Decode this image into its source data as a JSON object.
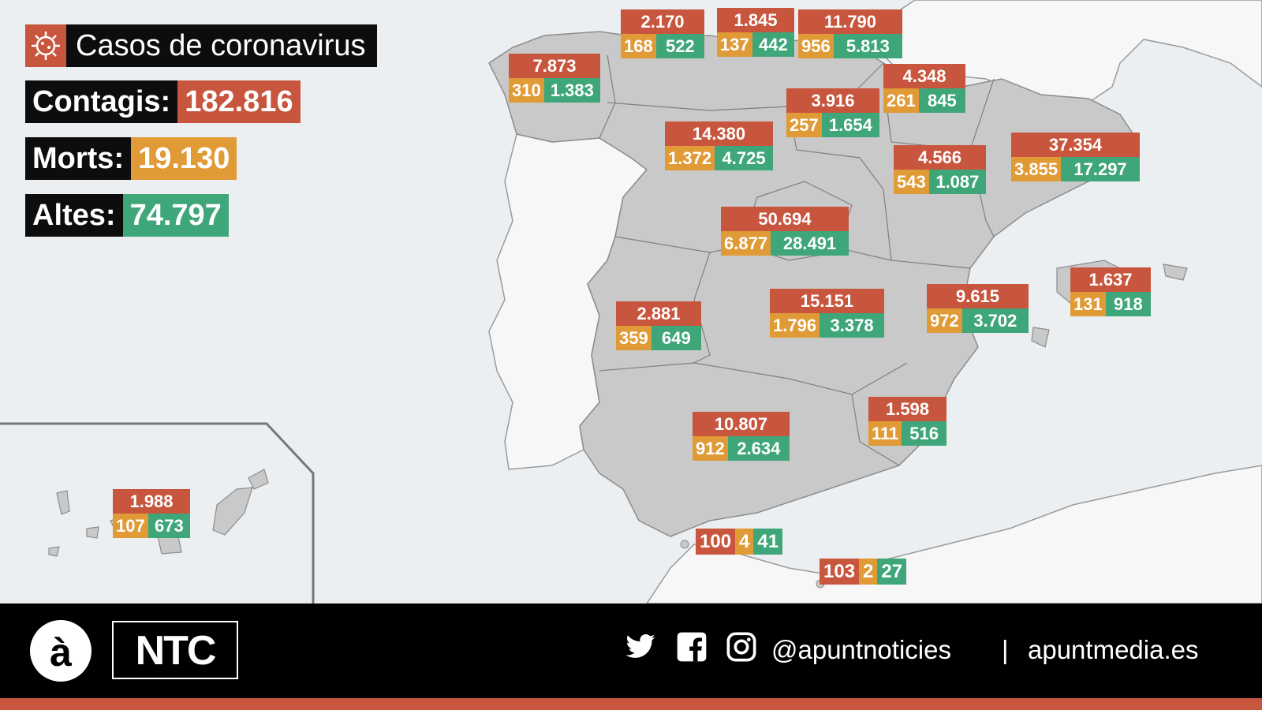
{
  "header": {
    "title": "Casos de coronavirus",
    "icon": "virus-icon"
  },
  "totals": [
    {
      "label": "Contagis:",
      "value": "182.816",
      "color": "#c8553d"
    },
    {
      "label": "Morts:",
      "value": "19.130",
      "color": "#e09a36"
    },
    {
      "label": "Altes:",
      "value": "74.797",
      "color": "#3fa67a"
    }
  ],
  "colors": {
    "cases": "#c8553d",
    "deaths": "#e09a36",
    "recovered": "#3fa67a",
    "land": "#c9c9c9",
    "sea": "#eceff1",
    "neighbor": "#f7f7f7"
  },
  "regions": [
    {
      "id": "asturias",
      "cases": "2.170",
      "deaths": "168",
      "recovered": "522"
    },
    {
      "id": "cantabria",
      "cases": "1.845",
      "deaths": "137",
      "recovered": "442"
    },
    {
      "id": "pais-vasco",
      "cases": "11.790",
      "deaths": "956",
      "recovered": "5.813"
    },
    {
      "id": "galicia",
      "cases": "7.873",
      "deaths": "310",
      "recovered": "1.383"
    },
    {
      "id": "navarra",
      "cases": "4.348",
      "deaths": "261",
      "recovered": "845"
    },
    {
      "id": "la-rioja",
      "cases": "3.916",
      "deaths": "257",
      "recovered": "1.654"
    },
    {
      "id": "castilla-leon",
      "cases": "14.380",
      "deaths": "1.372",
      "recovered": "4.725"
    },
    {
      "id": "cataluna",
      "cases": "37.354",
      "deaths": "3.855",
      "recovered": "17.297"
    },
    {
      "id": "aragon",
      "cases": "4.566",
      "deaths": "543",
      "recovered": "1.087"
    },
    {
      "id": "madrid",
      "cases": "50.694",
      "deaths": "6.877",
      "recovered": "28.491"
    },
    {
      "id": "extremadura",
      "cases": "2.881",
      "deaths": "359",
      "recovered": "649"
    },
    {
      "id": "castilla-la-mancha",
      "cases": "15.151",
      "deaths": "1.796",
      "recovered": "3.378"
    },
    {
      "id": "comunitat-valenciana",
      "cases": "9.615",
      "deaths": "972",
      "recovered": "3.702"
    },
    {
      "id": "illes-balears",
      "cases": "1.637",
      "deaths": "131",
      "recovered": "918"
    },
    {
      "id": "murcia",
      "cases": "1.598",
      "deaths": "111",
      "recovered": "516"
    },
    {
      "id": "andalucia",
      "cases": "10.807",
      "deaths": "912",
      "recovered": "2.634"
    },
    {
      "id": "canarias",
      "cases": "1.988",
      "deaths": "107",
      "recovered": "673"
    },
    {
      "id": "ceuta",
      "cases": "100",
      "deaths": "4",
      "recovered": "41"
    },
    {
      "id": "melilla",
      "cases": "103",
      "deaths": "2",
      "recovered": "27"
    }
  ],
  "footer": {
    "logo_a": "à",
    "logo_ntc": "NTC",
    "social_icons": [
      "twitter-icon",
      "facebook-icon",
      "instagram-icon"
    ],
    "handle": "@apuntnoticies",
    "separator": "|",
    "website": "apuntmedia.es"
  }
}
